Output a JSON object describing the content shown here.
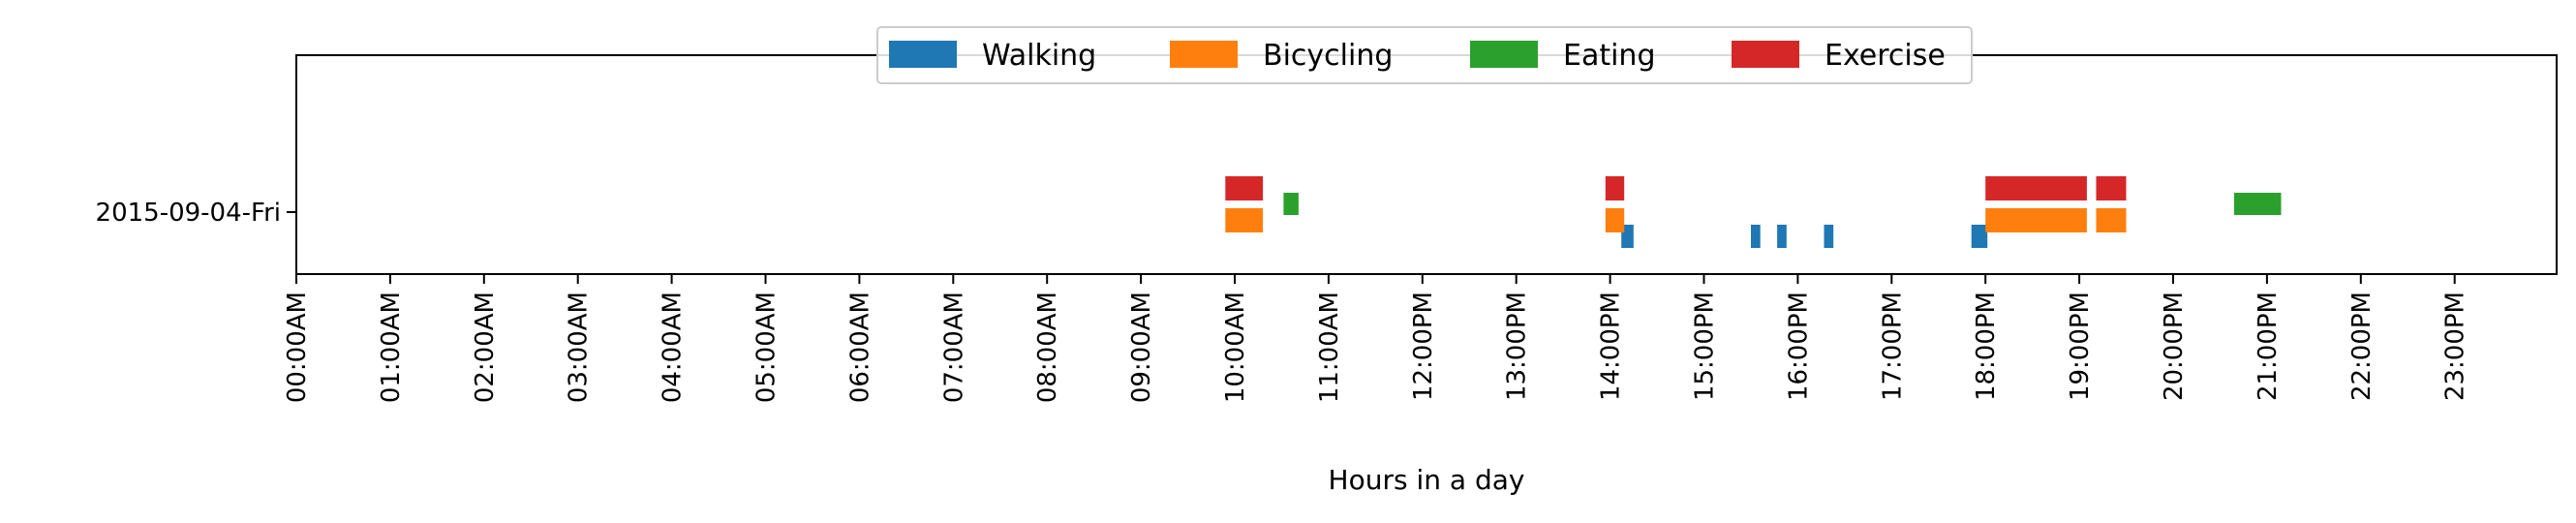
{
  "chart_data": {
    "type": "bar",
    "orientation": "horizontal-timeline",
    "xlabel": "Hours in a day",
    "ylabel": "",
    "xlim": [
      0,
      24
    ],
    "y_categories": [
      "2015-09-04-Fri"
    ],
    "x_tick_labels": [
      "00:00AM",
      "01:00AM",
      "02:00AM",
      "03:00AM",
      "04:00AM",
      "05:00AM",
      "06:00AM",
      "07:00AM",
      "08:00AM",
      "09:00AM",
      "10:00AM",
      "11:00AM",
      "12:00PM",
      "13:00PM",
      "14:00PM",
      "15:00PM",
      "16:00PM",
      "17:00PM",
      "18:00PM",
      "19:00PM",
      "20:00PM",
      "21:00PM",
      "22:00PM",
      "23:00PM"
    ],
    "legend": {
      "placement": "upper-center"
    },
    "grid": false,
    "series": [
      {
        "name": "Walking",
        "color": "#1f77b4",
        "intervals": [
          [
            14.12,
            14.25
          ],
          [
            15.5,
            15.6
          ],
          [
            15.78,
            15.88
          ],
          [
            16.28,
            16.38
          ],
          [
            17.85,
            18.02
          ]
        ]
      },
      {
        "name": "Bicycling",
        "color": "#ff7f0e",
        "intervals": [
          [
            9.9,
            10.3
          ],
          [
            13.95,
            14.15
          ],
          [
            18.0,
            19.08
          ],
          [
            19.18,
            19.5
          ]
        ]
      },
      {
        "name": "Eating",
        "color": "#2ca02c",
        "intervals": [
          [
            10.52,
            10.68
          ],
          [
            20.65,
            21.15
          ]
        ]
      },
      {
        "name": "Exercise",
        "color": "#d62728",
        "intervals": [
          [
            9.9,
            10.3
          ],
          [
            13.95,
            14.15
          ],
          [
            18.0,
            19.08
          ],
          [
            19.18,
            19.5
          ]
        ]
      }
    ]
  }
}
